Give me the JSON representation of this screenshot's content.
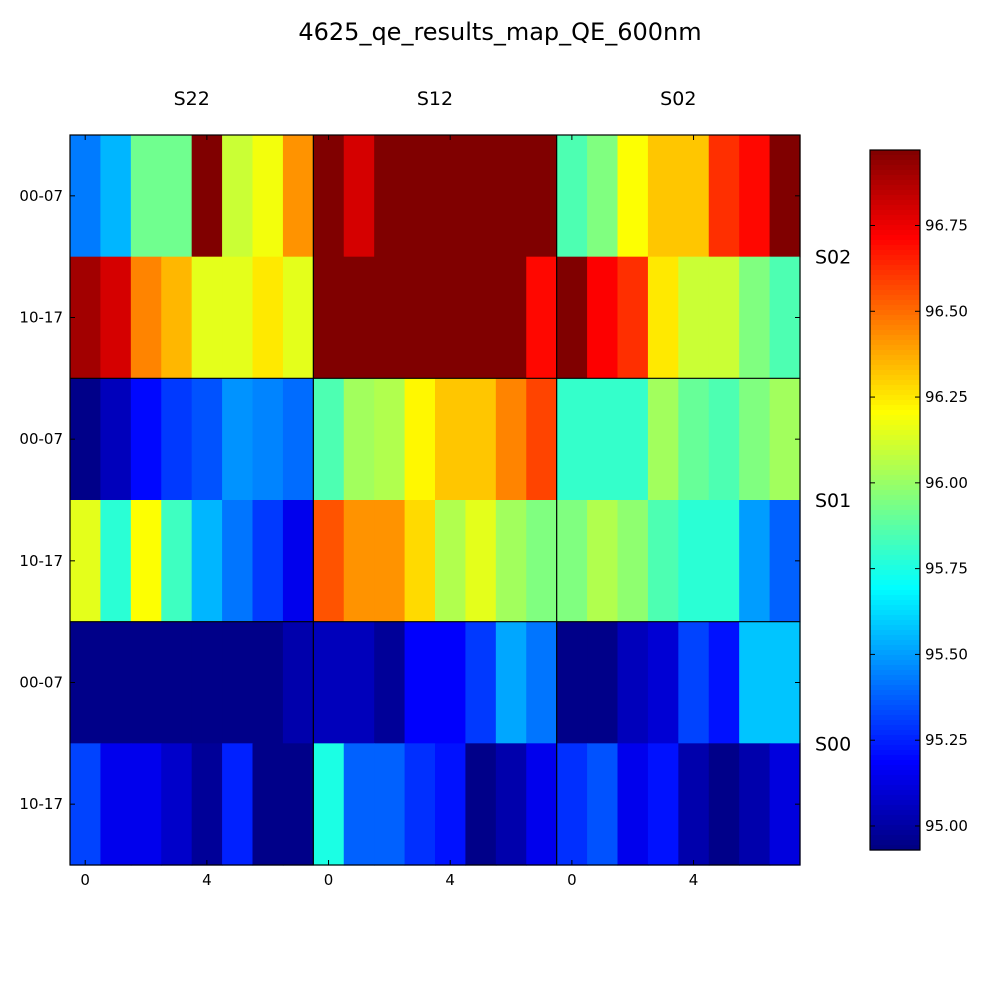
{
  "chart_data": {
    "type": "heatmap",
    "title": "4625_qe_results_map_QE_600nm",
    "column_blocks": [
      "S22",
      "S12",
      "S02"
    ],
    "row_blocks": [
      "S02",
      "S01",
      "S00"
    ],
    "y_tick_labels": [
      "00-07",
      "10-17"
    ],
    "x_tick_labels": [
      "0",
      "4"
    ],
    "x_tick_positions": [
      0,
      4
    ],
    "colorbar": {
      "colormap": "jet",
      "range": [
        94.93,
        96.97
      ],
      "ticks": [
        95.0,
        95.25,
        95.5,
        95.75,
        96.0,
        96.25,
        96.5,
        96.75
      ],
      "tick_labels": [
        "95.00",
        "95.25",
        "95.50",
        "95.75",
        "96.00",
        "96.25",
        "96.50",
        "96.75"
      ]
    },
    "values": [
      [
        95.43,
        95.55,
        95.92,
        95.92,
        96.97,
        96.1,
        96.18,
        96.42,
        96.97,
        96.8,
        96.97,
        96.97,
        96.97,
        96.97,
        96.97,
        96.97,
        95.85,
        95.95,
        96.2,
        96.32,
        96.32,
        96.62,
        96.7,
        96.97
      ],
      [
        96.9,
        96.8,
        96.45,
        96.35,
        96.15,
        96.15,
        96.25,
        96.15,
        96.97,
        96.97,
        96.97,
        96.97,
        96.97,
        96.97,
        96.97,
        96.7,
        96.97,
        96.72,
        96.62,
        96.25,
        96.1,
        96.1,
        95.95,
        95.85
      ],
      [
        94.95,
        95.05,
        95.2,
        95.3,
        95.35,
        95.48,
        95.45,
        95.4,
        95.85,
        96.02,
        96.05,
        96.22,
        96.32,
        96.32,
        96.45,
        96.58,
        95.8,
        95.8,
        95.8,
        96.02,
        95.9,
        95.85,
        95.95,
        96.02
      ],
      [
        96.15,
        95.78,
        96.2,
        95.82,
        95.55,
        95.42,
        95.3,
        95.15,
        96.55,
        96.42,
        96.42,
        96.28,
        96.05,
        96.15,
        96.02,
        95.95,
        95.95,
        96.05,
        95.98,
        95.85,
        95.78,
        95.78,
        95.5,
        95.38
      ],
      [
        94.95,
        94.95,
        94.95,
        94.95,
        94.95,
        94.95,
        94.95,
        95.02,
        95.05,
        95.05,
        94.98,
        95.18,
        95.18,
        95.3,
        95.52,
        95.42,
        94.95,
        94.95,
        95.05,
        95.1,
        95.32,
        95.22,
        95.58,
        95.58
      ],
      [
        95.32,
        95.15,
        95.15,
        95.08,
        94.98,
        95.25,
        94.95,
        94.95,
        95.75,
        95.38,
        95.38,
        95.28,
        95.22,
        94.95,
        95.02,
        95.15,
        95.28,
        95.35,
        95.15,
        95.22,
        95.02,
        94.95,
        95.02,
        95.12
      ]
    ]
  }
}
